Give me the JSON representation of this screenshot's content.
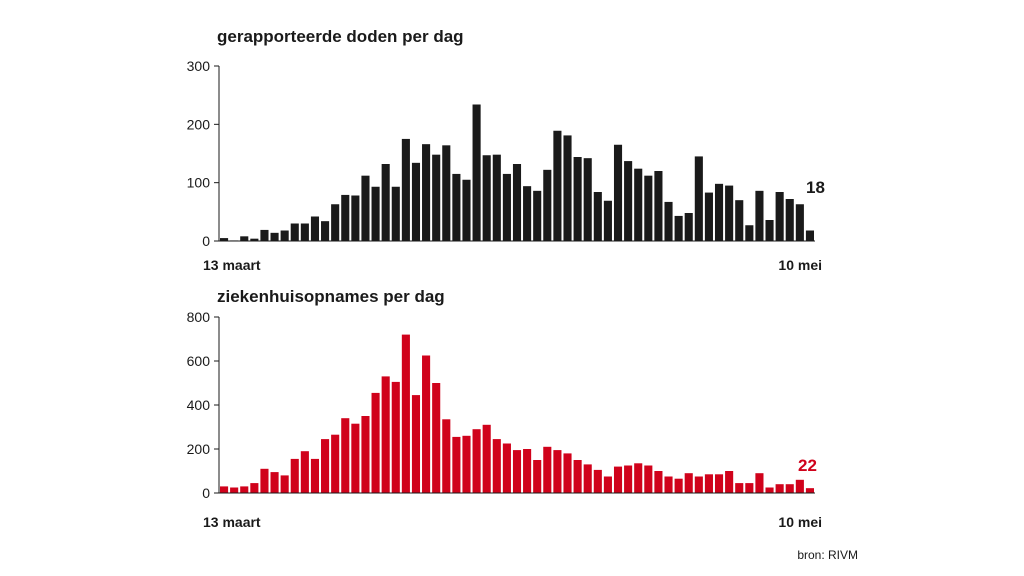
{
  "chart_data": [
    {
      "type": "bar",
      "title": "gerapporteerde doden per dag",
      "color": "#1a1a1a",
      "start_label": "13 maart",
      "end_label": "10 mei",
      "ylim": [
        0,
        300
      ],
      "yticks": [
        0,
        100,
        200,
        300
      ],
      "last_value_label": "18",
      "values": [
        5,
        1,
        8,
        4,
        19,
        14,
        18,
        30,
        30,
        42,
        34,
        63,
        79,
        78,
        112,
        93,
        132,
        93,
        175,
        134,
        166,
        148,
        164,
        115,
        105,
        234,
        147,
        148,
        115,
        132,
        94,
        86,
        122,
        189,
        181,
        144,
        142,
        84,
        69,
        165,
        137,
        124,
        112,
        120,
        67,
        43,
        48,
        145,
        83,
        98,
        95,
        70,
        27,
        86,
        36,
        84,
        72,
        63,
        18
      ]
    },
    {
      "type": "bar",
      "title": "ziekenhuisopnames per dag",
      "color": "#d0021b",
      "start_label": "13 maart",
      "end_label": "10 mei",
      "ylim": [
        0,
        800
      ],
      "yticks": [
        0,
        200,
        400,
        600,
        800
      ],
      "last_value_label": "22",
      "values": [
        30,
        25,
        30,
        45,
        110,
        95,
        80,
        155,
        190,
        155,
        245,
        265,
        340,
        315,
        350,
        455,
        530,
        505,
        720,
        445,
        625,
        500,
        335,
        255,
        260,
        290,
        310,
        245,
        225,
        195,
        200,
        150,
        210,
        195,
        180,
        150,
        130,
        105,
        75,
        120,
        125,
        135,
        125,
        100,
        75,
        65,
        90,
        75,
        85,
        85,
        100,
        45,
        45,
        90,
        25,
        40,
        40,
        60,
        22
      ]
    }
  ],
  "source": "bron: RIVM"
}
